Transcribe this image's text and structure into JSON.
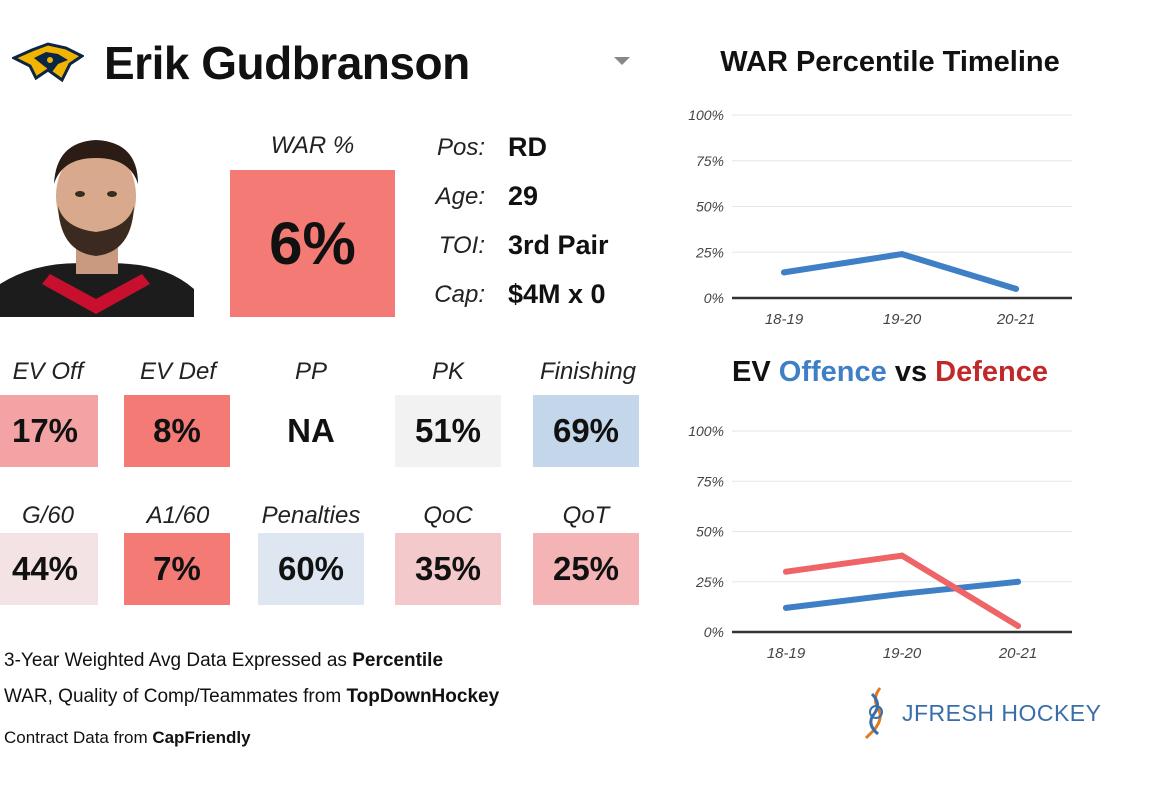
{
  "player": {
    "name": "Erik Gudbranson",
    "war_label": "WAR %",
    "war_value": "6%",
    "war_color": "#f47a76",
    "info": [
      {
        "key": "Pos:",
        "value": "RD"
      },
      {
        "key": "Age:",
        "value": "29"
      },
      {
        "key": "TOI:",
        "value": "3rd Pair"
      },
      {
        "key": "Cap:",
        "value": "$4M x 0"
      }
    ]
  },
  "stats_row1": [
    {
      "label": "EV Off",
      "value": "17%",
      "color": "#f4a3a4"
    },
    {
      "label": "EV Def",
      "value": "8%",
      "color": "#f47a76"
    },
    {
      "label": "PP",
      "value": "NA",
      "color": "#ffffff"
    },
    {
      "label": "PK",
      "value": "51%",
      "color": "#f2f2f2"
    },
    {
      "label": "Finishing",
      "value": "69%",
      "color": "#c3d6ea"
    }
  ],
  "stats_row2": [
    {
      "label": "G/60",
      "value": "44%",
      "color": "#f4e3e4"
    },
    {
      "label": "A1/60",
      "value": "7%",
      "color": "#f47a76"
    },
    {
      "label": "Penalties",
      "value": "60%",
      "color": "#dde6f1"
    },
    {
      "label": "QoC",
      "value": "35%",
      "color": "#f4c9cb"
    },
    {
      "label": "QoT",
      "value": "25%",
      "color": "#f4b3b5"
    }
  ],
  "footer": {
    "line1_text": "3-Year Weighted Avg Data Expressed as ",
    "line1_bold": "Percentile",
    "line2_text": "WAR, Quality of Comp/Teammates from ",
    "line2_bold": "TopDownHockey",
    "line3_text": "Contract Data from ",
    "line3_bold": "CapFriendly"
  },
  "brand": {
    "text": "JFRESH HOCKEY",
    "icon": "jfresh-logo-icon"
  },
  "team_logo": "predators-logo-icon",
  "chart_data": [
    {
      "type": "line",
      "title": "WAR Percentile Timeline",
      "categories": [
        "18-19",
        "19-20",
        "20-21"
      ],
      "series": [
        {
          "values": [
            14,
            24,
            5
          ],
          "color": "#3f7fc6"
        }
      ],
      "ylim": [
        0,
        100
      ],
      "yticks": [
        "0%",
        "25%",
        "50%",
        "75%",
        "100%"
      ],
      "grid": true
    },
    {
      "type": "line",
      "title_parts": [
        {
          "text": "EV ",
          "color": "#111111"
        },
        {
          "text": "Offence",
          "color": "#3f7fc6"
        },
        {
          "text": " vs ",
          "color": "#111111"
        },
        {
          "text": "Defence",
          "color": "#c0282a"
        }
      ],
      "categories": [
        "18-19",
        "19-20",
        "20-21"
      ],
      "series": [
        {
          "name": "Offence",
          "values": [
            12,
            19,
            25
          ],
          "color": "#3f7fc6"
        },
        {
          "name": "Defence",
          "values": [
            30,
            38,
            3
          ],
          "color": "#ef6467"
        }
      ],
      "ylim": [
        0,
        100
      ],
      "yticks": [
        "0%",
        "25%",
        "50%",
        "75%",
        "100%"
      ],
      "grid": true
    }
  ]
}
